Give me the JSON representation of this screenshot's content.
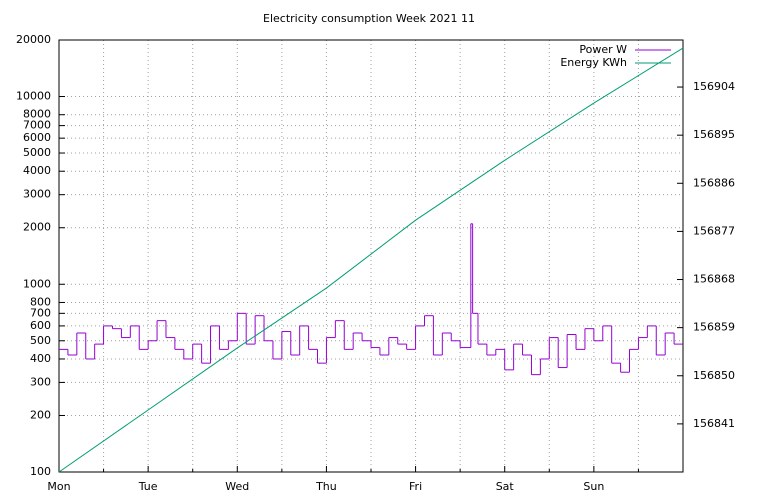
{
  "chart_data": {
    "type": "line",
    "title": "Electricity consumption Week 2021 11",
    "xlim": [
      0,
      7
    ],
    "xticks": [
      {
        "value": 0,
        "label": "Mon"
      },
      {
        "value": 1,
        "label": "Tue"
      },
      {
        "value": 2,
        "label": "Wed"
      },
      {
        "value": 3,
        "label": "Thu"
      },
      {
        "value": 4,
        "label": "Fri"
      },
      {
        "value": 5,
        "label": "Sat"
      },
      {
        "value": 6,
        "label": "Sun"
      }
    ],
    "x_minor_ticks": [
      0.5,
      1.5,
      2.5,
      3.5,
      4.5,
      5.5,
      6.5
    ],
    "ylim": [
      100,
      20000
    ],
    "log_y": true,
    "yticks": [
      100,
      200,
      300,
      400,
      500,
      600,
      700,
      800,
      1000,
      2000,
      3000,
      4000,
      5000,
      6000,
      7000,
      8000,
      10000,
      20000
    ],
    "y2lim": [
      156832,
      156912.8
    ],
    "y2ticks": [
      156841,
      156850,
      156859,
      156868,
      156877,
      156886,
      156895,
      156904
    ],
    "grid": true,
    "legend": "top-right",
    "series": [
      {
        "name": "Power W",
        "color": "#9400d3",
        "style": "steps",
        "x": [
          0,
          0.1,
          0.2,
          0.3,
          0.4,
          0.5,
          0.6,
          0.7,
          0.8,
          0.9,
          1,
          1.1,
          1.2,
          1.3,
          1.4,
          1.5,
          1.6,
          1.7,
          1.8,
          1.9,
          2,
          2.1,
          2.2,
          2.3,
          2.4,
          2.5,
          2.6,
          2.7,
          2.8,
          2.9,
          3,
          3.1,
          3.2,
          3.3,
          3.4,
          3.5,
          3.6,
          3.7,
          3.8,
          3.9,
          4,
          4.1,
          4.2,
          4.3,
          4.4,
          4.5,
          4.62,
          4.64,
          4.7,
          4.8,
          4.9,
          5,
          5.1,
          5.2,
          5.3,
          5.4,
          5.5,
          5.6,
          5.7,
          5.8,
          5.9,
          6,
          6.1,
          6.2,
          6.3,
          6.4,
          6.5,
          6.6,
          6.7,
          6.8,
          6.9
        ],
        "values": [
          450,
          420,
          550,
          400,
          480,
          600,
          580,
          520,
          600,
          450,
          500,
          640,
          520,
          450,
          400,
          480,
          380,
          600,
          450,
          500,
          700,
          480,
          680,
          500,
          400,
          560,
          420,
          600,
          450,
          380,
          520,
          640,
          450,
          550,
          500,
          460,
          420,
          520,
          480,
          450,
          600,
          680,
          420,
          550,
          500,
          460,
          2100,
          700,
          480,
          420,
          450,
          350,
          480,
          420,
          330,
          400,
          520,
          360,
          540,
          450,
          580,
          500,
          600,
          380,
          340,
          450,
          520,
          600,
          420,
          550,
          480
        ]
      },
      {
        "name": "Energy KWh",
        "color": "#009e73",
        "axis": "y2",
        "x": [
          0,
          1,
          2,
          3,
          4,
          5,
          6,
          7
        ],
        "values": [
          156832.0,
          156843.6,
          156855.2,
          156866.4,
          156879.1,
          156890.3,
          156901.0,
          156911.3
        ]
      }
    ]
  }
}
